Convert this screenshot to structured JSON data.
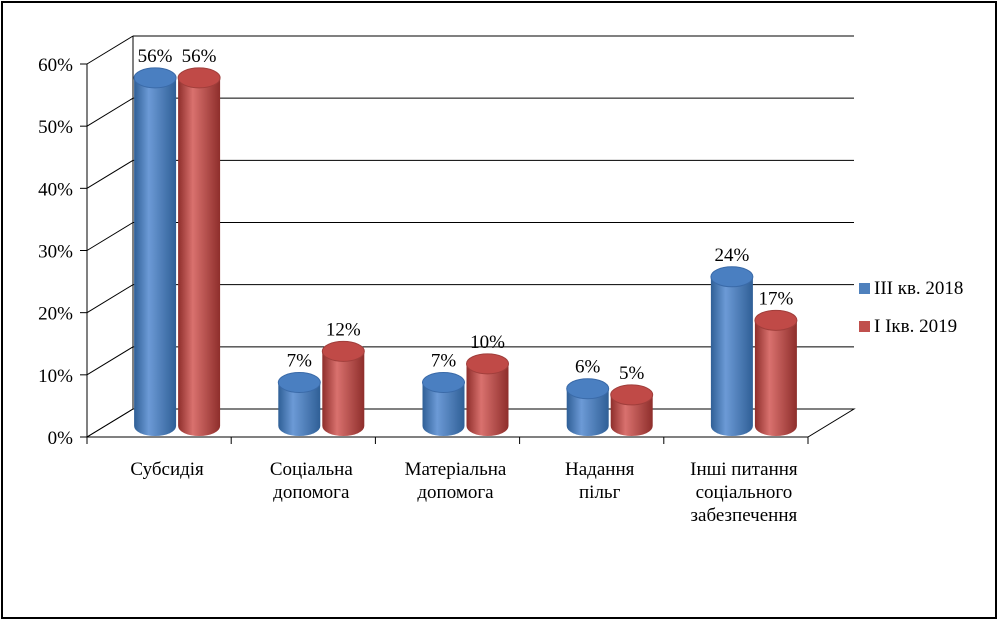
{
  "chart_data": {
    "type": "bar",
    "categories": [
      [
        "Субсидія"
      ],
      [
        "Соціальна",
        "допомога"
      ],
      [
        "Матеріальна",
        "допомога"
      ],
      [
        "Надання",
        "пільг"
      ],
      [
        "Інші питання",
        "соціального",
        "забезпечення"
      ]
    ],
    "series": [
      {
        "name": "ІІІ кв. 2018",
        "values": [
          56,
          7,
          7,
          6,
          24
        ],
        "labels": [
          "56%",
          "7%",
          "7%",
          "6%",
          "24%"
        ],
        "color": "#4F81BD"
      },
      {
        "name": "І Ікв. 2019",
        "values": [
          56,
          12,
          10,
          5,
          17
        ],
        "labels": [
          "56%",
          "12%",
          "10%",
          "5%",
          "17%"
        ],
        "color": "#C0504D"
      }
    ],
    "yticks": [
      "0%",
      "10%",
      "20%",
      "30%",
      "40%",
      "50%",
      "60%"
    ],
    "ylim": [
      0,
      60
    ],
    "grid": true,
    "legend": "right",
    "title": "",
    "xlabel": "",
    "ylabel": ""
  }
}
